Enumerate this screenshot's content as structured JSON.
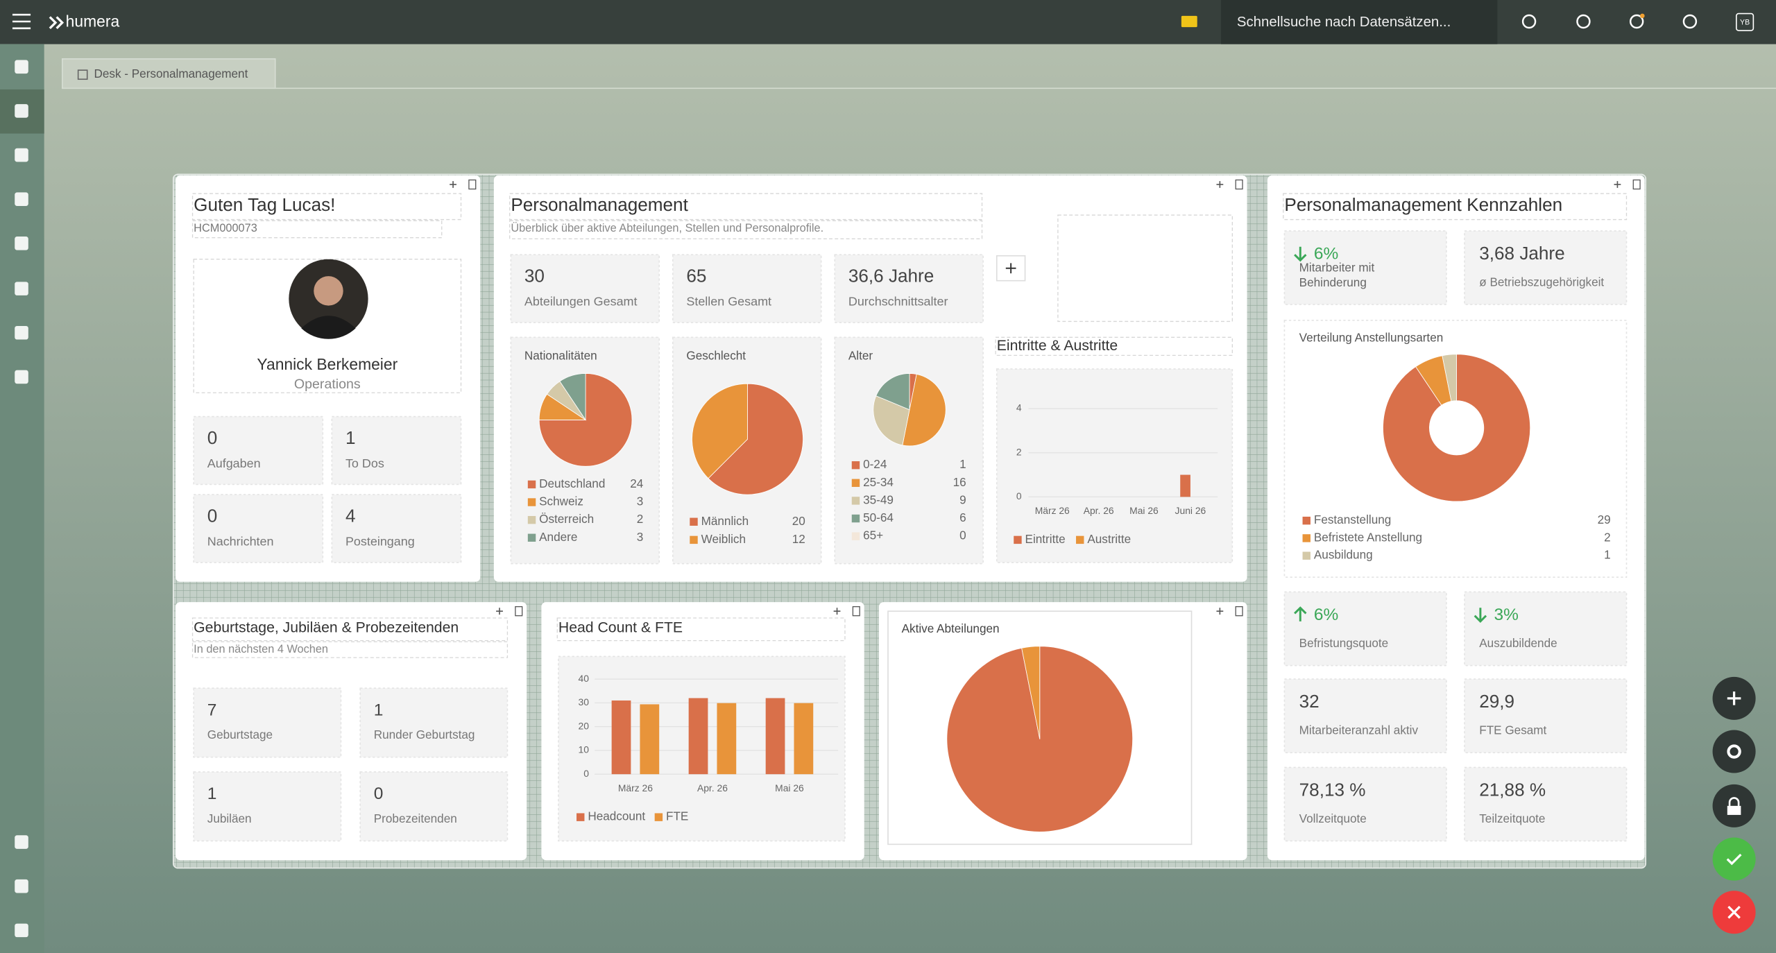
{
  "header": {
    "brand": "humera",
    "search_placeholder": "Schnellsuche nach Datensätzen...",
    "avatar": "YB"
  },
  "tab": {
    "label": "Desk - Personalmanagement"
  },
  "welcome": {
    "title": "Guten Tag Lucas!",
    "id": "HCM000073",
    "profile": {
      "name": "Yannick Berkemeier",
      "department": "Operations"
    },
    "tiles": [
      {
        "value": 0,
        "label": "Aufgaben"
      },
      {
        "value": 1,
        "label": "To Dos"
      },
      {
        "value": 0,
        "label": "Nachrichten"
      },
      {
        "value": 4,
        "label": "Posteingang"
      }
    ]
  },
  "personnel": {
    "title": "Personalmanagement",
    "subtitle": "Überblick über aktive Abteilungen, Stellen und Personalprofile.",
    "tiles": [
      {
        "value": 30,
        "label": "Abteilungen Gesamt"
      },
      {
        "value": 65,
        "label": "Stellen Gesamt"
      },
      {
        "value": "36,6 Jahre",
        "label": "Durchschnittsalter"
      }
    ],
    "charts": [
      {
        "type": "pie",
        "title": "Nationalitäten",
        "categories": [
          "Deutschland",
          "Schweiz",
          "Österreich",
          "Andere"
        ],
        "values": [
          24,
          3,
          2,
          3
        ],
        "colors": [
          "#d9704a",
          "#e8943a",
          "#d4c9a8",
          "#7fa08e"
        ]
      },
      {
        "type": "pie",
        "title": "Geschlecht",
        "categories": [
          "Männlich",
          "Weiblich"
        ],
        "values": [
          20,
          12
        ],
        "colors": [
          "#d9704a",
          "#e8943a"
        ]
      },
      {
        "type": "pie",
        "title": "Alter",
        "categories": [
          "0-24",
          "25-34",
          "35-49",
          "50-64",
          "65+"
        ],
        "values": [
          1,
          16,
          9,
          6,
          0
        ],
        "colors": [
          "#d9704a",
          "#e8943a",
          "#d4c9a8",
          "#7fa08e",
          "#f3e7da"
        ]
      }
    ],
    "movements": {
      "type": "bar",
      "title": "Eintritte & Austritte",
      "categories": [
        "März 26",
        "Apr. 26",
        "Mai 26",
        "Juni 26"
      ],
      "series": [
        {
          "name": "Eintritte",
          "color": "#d9704a",
          "values": [
            0,
            0,
            0,
            1
          ]
        },
        {
          "name": "Austritte",
          "color": "#e8943a",
          "values": [
            0,
            0,
            0,
            0
          ]
        }
      ],
      "ylim": [
        0,
        5
      ],
      "yticks": [
        0,
        2,
        4
      ]
    }
  },
  "kpis": {
    "title": "Personalmanagement Kennzahlen",
    "tiles": [
      {
        "value": "6%",
        "label": "Mitarbeiter mit Behinderung"
      },
      {
        "value": "3,68 Jahre",
        "label": "ø Betriebszugehörigkeit"
      },
      {
        "value": "6%",
        "label": "Befristungsquote"
      },
      {
        "value": "3%",
        "label": "Auszubildende"
      },
      {
        "value": 32,
        "label": "Mitarbeiteranzahl aktiv"
      },
      {
        "value": "29,9",
        "label": "FTE Gesamt"
      },
      {
        "value": "78,13 %",
        "label": "Vollzeitquote"
      },
      {
        "value": "21,88 %",
        "label": "Teilzeitquote"
      }
    ],
    "employment": {
      "type": "donut",
      "title": "Verteilung Anstellungsarten",
      "categories": [
        "Festanstellung",
        "Befristete Anstellung",
        "Ausbildung"
      ],
      "values": [
        29,
        2,
        1
      ],
      "colors": [
        "#d9704a",
        "#e8943a",
        "#d4c9a8"
      ]
    }
  },
  "events": {
    "title": "Geburtstage, Jubiläen & Probezeitenden",
    "subtitle": "In den nächsten 4 Wochen",
    "tiles": [
      {
        "value": 7,
        "label": "Geburtstage"
      },
      {
        "value": 1,
        "label": "Runder Geburtstag"
      },
      {
        "value": 1,
        "label": "Jubiläen"
      },
      {
        "value": 0,
        "label": "Probezeitenden"
      }
    ]
  },
  "headcount": {
    "type": "bar",
    "title": "Head Count & FTE",
    "categories": [
      "März 26",
      "Apr. 26",
      "Mai 26"
    ],
    "series": [
      {
        "name": "Headcount",
        "color": "#d9704a",
        "values": [
          31,
          32,
          32
        ]
      },
      {
        "name": "FTE",
        "color": "#e8943a",
        "values": [
          29.4,
          29.9,
          29.9
        ]
      }
    ],
    "ylim": [
      0,
      40
    ],
    "yticks": [
      0,
      10,
      20,
      30,
      40
    ]
  },
  "departments": {
    "type": "pie",
    "title": "Aktive Abteilungen",
    "categories": [
      null,
      null
    ],
    "values": [
      31,
      1
    ],
    "colors": [
      "#d9704a",
      "#e8943a"
    ]
  }
}
